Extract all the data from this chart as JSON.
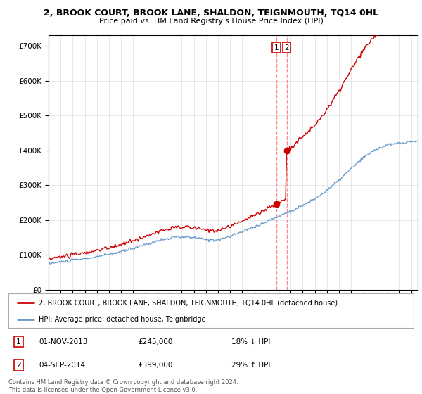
{
  "title": "2, BROOK COURT, BROOK LANE, SHALDON, TEIGNMOUTH, TQ14 0HL",
  "subtitle": "Price paid vs. HM Land Registry's House Price Index (HPI)",
  "sale1_date": "01-NOV-2013",
  "sale1_price": 245000,
  "sale1_hpi": "18% ↓ HPI",
  "sale2_date": "04-SEP-2014",
  "sale2_price": 399000,
  "sale2_hpi": "29% ↑ HPI",
  "legend1": "2, BROOK COURT, BROOK LANE, SHALDON, TEIGNMOUTH, TQ14 0HL (detached house)",
  "legend2": "HPI: Average price, detached house, Teignbridge",
  "hpi_color": "#6699cc",
  "price_color": "#cc0000",
  "vline_color": "#ff8888",
  "footer": "Contains HM Land Registry data © Crown copyright and database right 2024.\nThis data is licensed under the Open Government Licence v3.0.",
  "ylim": [
    0,
    730000
  ],
  "yticks": [
    0,
    100000,
    200000,
    300000,
    400000,
    500000,
    600000,
    700000
  ],
  "start_year": 1995,
  "end_year": 2025
}
